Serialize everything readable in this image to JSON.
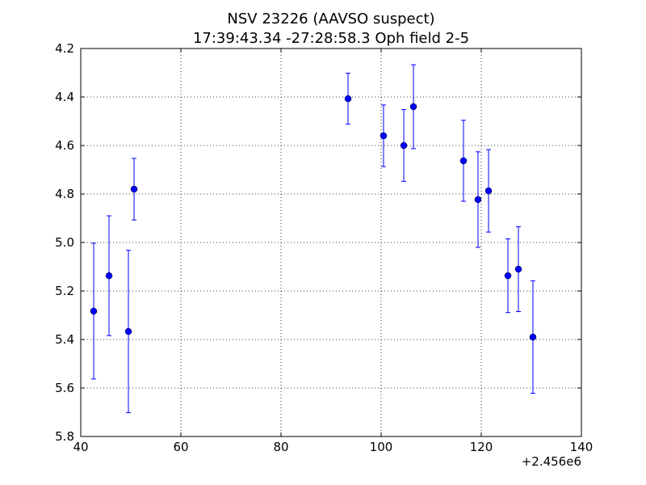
{
  "chart_data": {
    "type": "errorbar",
    "title": "NSV 23226 (AAVSO suspect)",
    "subtitle": "17:39:43.34 -27:28:58.3 Oph field 2-5",
    "x_offset_label": "+2.456e6",
    "x": [
      42.58,
      45.65,
      49.52,
      50.65,
      93.39,
      100.48,
      104.52,
      106.45,
      116.45,
      119.35,
      121.45,
      125.32,
      127.42,
      130.32
    ],
    "y": [
      5.283,
      5.137,
      5.367,
      4.78,
      4.407,
      4.56,
      4.6,
      4.44,
      4.663,
      4.823,
      4.787,
      5.137,
      5.11,
      5.39
    ],
    "yerr": [
      0.28,
      0.247,
      0.335,
      0.127,
      0.105,
      0.127,
      0.148,
      0.173,
      0.167,
      0.197,
      0.17,
      0.152,
      0.175,
      0.232
    ],
    "color": "#0000ff",
    "xlim": [
      40,
      140
    ],
    "xticks": [
      40,
      60,
      80,
      100,
      120,
      140
    ],
    "ylim": [
      5.8,
      4.2
    ],
    "yticks": [
      4.2,
      4.4,
      4.6,
      4.8,
      {
        "value": 5,
        "label": "5.0"
      },
      5.2,
      5.4,
      5.6,
      5.8
    ],
    "y_inverted": true,
    "grid": true
  }
}
